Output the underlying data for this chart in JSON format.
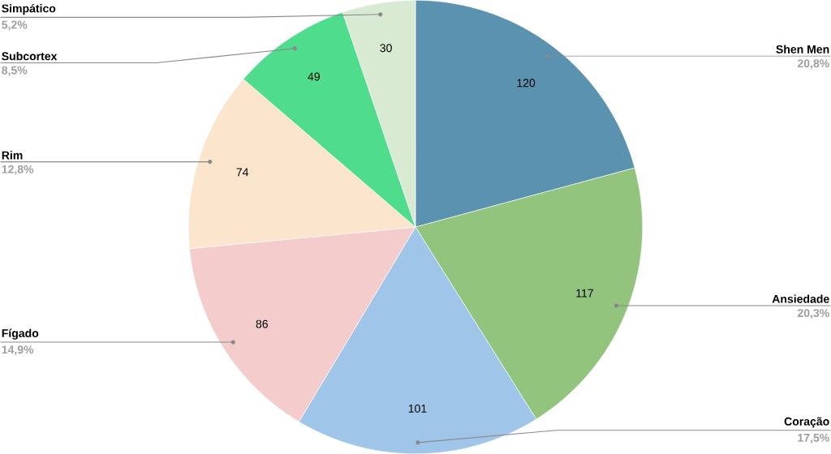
{
  "chart_data": {
    "type": "pie",
    "categories": [
      "Shen Men",
      "Ansiedade",
      "Coração",
      "Fígado",
      "Rim",
      "Subcortex",
      "Simpático"
    ],
    "values": [
      120,
      117,
      101,
      86,
      74,
      49,
      30
    ],
    "colors": [
      "#5a92b0",
      "#93c47d",
      "#9fc5e8",
      "#f4cccc",
      "#fce5cd",
      "#4fdc8c",
      "#d9ead3"
    ],
    "data_labels": true,
    "annotations": [
      "20,8%",
      "20,3%",
      "17,5%",
      "14,9%",
      "12,8%",
      "8,5%",
      "5,2%"
    ]
  }
}
